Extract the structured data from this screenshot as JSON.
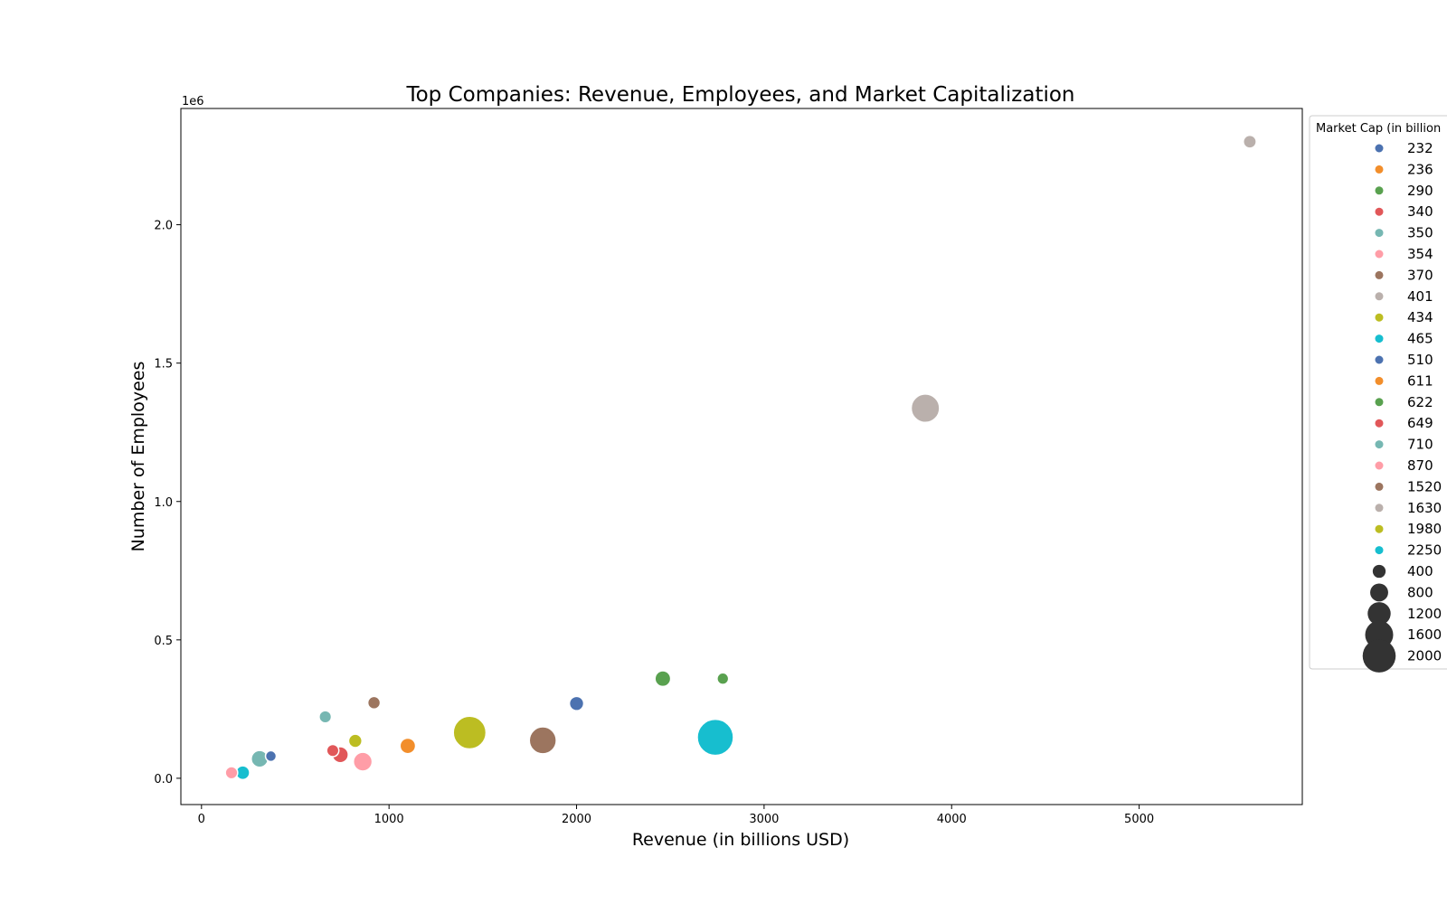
{
  "chart_data": {
    "type": "scatter",
    "title": "Top Companies: Revenue, Employees, and Market Capitalization",
    "xlabel": "Revenue (in billions USD)",
    "ylabel": "Number of Employees",
    "y_offset_label": "1e6",
    "xlim": [
      -110,
      5870
    ],
    "ylim": [
      -95000,
      2420000
    ],
    "x_ticks": [
      0,
      1000,
      2000,
      3000,
      4000,
      5000
    ],
    "x_tick_labels": [
      "0",
      "1000",
      "2000",
      "3000",
      "4000",
      "5000"
    ],
    "y_ticks": [
      0,
      500000,
      1000000,
      1500000,
      2000000
    ],
    "y_tick_labels": [
      "0.0",
      "0.5",
      "1.0",
      "1.5",
      "2.0"
    ],
    "grid": false,
    "legend": {
      "title": "Market Cap (in billion",
      "placement": "outside-right",
      "hue_entries": [
        {
          "label": "232",
          "color": "#4c72b0"
        },
        {
          "label": "236",
          "color": "#f28e2b"
        },
        {
          "label": "290",
          "color": "#59a14f"
        },
        {
          "label": "340",
          "color": "#e15759"
        },
        {
          "label": "350",
          "color": "#76b7b2"
        },
        {
          "label": "354",
          "color": "#ff9da7"
        },
        {
          "label": "370",
          "color": "#9c755f"
        },
        {
          "label": "401",
          "color": "#bab0ac"
        },
        {
          "label": "434",
          "color": "#bcbd22"
        },
        {
          "label": "465",
          "color": "#17becf"
        },
        {
          "label": "510",
          "color": "#4c72b0"
        },
        {
          "label": "611",
          "color": "#f28e2b"
        },
        {
          "label": "622",
          "color": "#59a14f"
        },
        {
          "label": "649",
          "color": "#e15759"
        },
        {
          "label": "710",
          "color": "#76b7b2"
        },
        {
          "label": "870",
          "color": "#ff9da7"
        },
        {
          "label": "1520",
          "color": "#9c755f"
        },
        {
          "label": "1630",
          "color": "#bab0ac"
        },
        {
          "label": "1980",
          "color": "#bcbd22"
        },
        {
          "label": "2250",
          "color": "#17becf"
        }
      ],
      "size_entries": [
        {
          "label": "400",
          "value": 400
        },
        {
          "label": "800",
          "value": 800
        },
        {
          "label": "1200",
          "value": 1200
        },
        {
          "label": "1600",
          "value": 1600
        },
        {
          "label": "2000",
          "value": 2000
        }
      ]
    },
    "points": [
      {
        "x": 370,
        "y": 80000,
        "market_cap": 232,
        "color": "#4c72b0"
      },
      {
        "x": 1100,
        "y": 117000,
        "market_cap": 611,
        "color": "#f28e2b"
      },
      {
        "x": 2780,
        "y": 360000,
        "market_cap": 290,
        "color": "#59a14f"
      },
      {
        "x": 700,
        "y": 100000,
        "market_cap": 340,
        "color": "#e15759"
      },
      {
        "x": 660,
        "y": 222000,
        "market_cap": 350,
        "color": "#76b7b2"
      },
      {
        "x": 160,
        "y": 20000,
        "market_cap": 354,
        "color": "#ff9da7"
      },
      {
        "x": 920,
        "y": 273000,
        "market_cap": 370,
        "color": "#9c755f"
      },
      {
        "x": 5590,
        "y": 2300000,
        "market_cap": 401,
        "color": "#bab0ac"
      },
      {
        "x": 820,
        "y": 135000,
        "market_cap": 434,
        "color": "#bcbd22"
      },
      {
        "x": 220,
        "y": 20000,
        "market_cap": 465,
        "color": "#17becf"
      },
      {
        "x": 2000,
        "y": 270000,
        "market_cap": 510,
        "color": "#4c72b0"
      },
      {
        "x": 2460,
        "y": 360000,
        "market_cap": 622,
        "color": "#59a14f"
      },
      {
        "x": 740,
        "y": 85000,
        "market_cap": 649,
        "color": "#e15759"
      },
      {
        "x": 310,
        "y": 70000,
        "market_cap": 710,
        "color": "#76b7b2"
      },
      {
        "x": 860,
        "y": 60000,
        "market_cap": 870,
        "color": "#ff9da7"
      },
      {
        "x": 1820,
        "y": 137000,
        "market_cap": 1520,
        "color": "#9c755f"
      },
      {
        "x": 3860,
        "y": 1337000,
        "market_cap": 1630,
        "color": "#bab0ac"
      },
      {
        "x": 1430,
        "y": 165000,
        "market_cap": 1980,
        "color": "#bcbd22"
      },
      {
        "x": 2740,
        "y": 148000,
        "market_cap": 2250,
        "color": "#17becf"
      }
    ]
  }
}
